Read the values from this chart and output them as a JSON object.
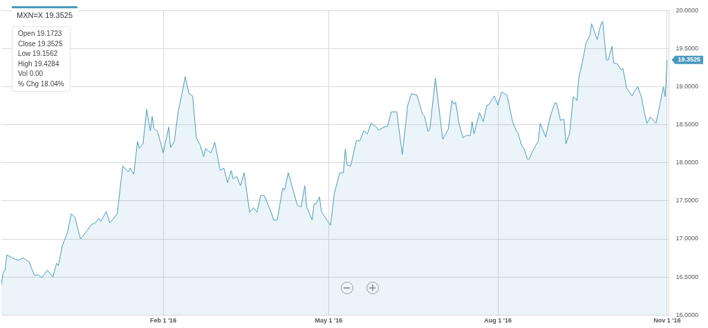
{
  "chart_data": {
    "type": "area",
    "grid": true,
    "marker": "none",
    "line_style": "solid",
    "x": [
      "2015-11-05",
      "2015-11-06",
      "2015-11-07",
      "2015-11-08",
      "2015-11-11",
      "2015-11-14",
      "2015-11-15",
      "2015-11-17",
      "2015-11-20",
      "2015-11-23",
      "2015-11-25",
      "2015-11-27",
      "2015-11-30",
      "2015-12-03",
      "2015-12-05",
      "2015-12-06",
      "2015-12-08",
      "2015-12-11",
      "2015-12-13",
      "2015-12-15",
      "2015-12-18",
      "2015-12-21",
      "2015-12-24",
      "2015-12-26",
      "2015-12-28",
      "2015-12-29",
      "2016-01-01",
      "2016-01-03",
      "2016-01-07",
      "2016-01-10",
      "2016-01-13",
      "2016-01-14",
      "2016-01-16",
      "2016-01-18",
      "2016-01-19",
      "2016-01-21",
      "2016-01-23",
      "2016-01-25",
      "2016-01-26",
      "2016-01-27",
      "2016-01-29",
      "2016-02-01",
      "2016-02-04",
      "2016-02-05",
      "2016-02-07",
      "2016-02-09",
      "2016-02-11",
      "2016-02-13",
      "2016-02-15",
      "2016-02-17",
      "2016-02-19",
      "2016-02-21",
      "2016-02-23",
      "2016-02-24",
      "2016-02-27",
      "2016-02-29",
      "2016-03-03",
      "2016-03-05",
      "2016-03-07",
      "2016-03-09",
      "2016-03-10",
      "2016-03-12",
      "2016-03-14",
      "2016-03-16",
      "2016-03-19",
      "2016-03-21",
      "2016-03-23",
      "2016-03-25",
      "2016-03-27",
      "2016-03-31",
      "2016-04-01",
      "2016-04-03",
      "2016-04-06",
      "2016-04-07",
      "2016-04-09",
      "2016-04-14",
      "2016-04-16",
      "2016-04-18",
      "2016-04-19",
      "2016-04-22",
      "2016-04-23",
      "2016-04-24",
      "2016-04-26",
      "2016-04-27",
      "2016-04-30",
      "2016-05-02",
      "2016-05-04",
      "2016-05-07",
      "2016-05-09",
      "2016-05-10",
      "2016-05-11",
      "2016-05-13",
      "2016-05-16",
      "2016-05-18",
      "2016-05-20",
      "2016-05-22",
      "2016-05-24",
      "2016-05-27",
      "2016-05-28",
      "2016-05-31",
      "2016-06-02",
      "2016-06-04",
      "2016-06-07",
      "2016-06-10",
      "2016-06-13",
      "2016-06-15",
      "2016-06-18",
      "2016-06-21",
      "2016-06-22",
      "2016-06-24",
      "2016-06-25",
      "2016-06-28",
      "2016-07-02",
      "2016-07-05",
      "2016-07-07",
      "2016-07-08",
      "2016-07-09",
      "2016-07-11",
      "2016-07-13",
      "2016-07-15",
      "2016-07-17",
      "2016-07-18",
      "2016-07-19",
      "2016-07-22",
      "2016-07-24",
      "2016-07-26",
      "2016-07-27",
      "2016-07-30",
      "2016-08-01",
      "2016-08-03",
      "2016-08-06",
      "2016-08-09",
      "2016-08-11",
      "2016-08-12",
      "2016-08-14",
      "2016-08-15",
      "2016-08-17",
      "2016-08-18",
      "2016-08-20",
      "2016-08-23",
      "2016-08-24",
      "2016-08-27",
      "2016-08-29",
      "2016-08-30",
      "2016-09-01",
      "2016-09-02",
      "2016-09-04",
      "2016-09-06",
      "2016-09-07",
      "2016-09-09",
      "2016-09-11",
      "2016-09-13",
      "2016-09-14",
      "2016-09-16",
      "2016-09-18",
      "2016-09-20",
      "2016-09-21",
      "2016-09-24",
      "2016-09-26",
      "2016-09-27",
      "2016-09-29",
      "2016-09-30",
      "2016-10-02",
      "2016-10-03",
      "2016-10-05",
      "2016-10-07",
      "2016-10-08",
      "2016-10-10",
      "2016-10-13",
      "2016-10-14",
      "2016-10-16",
      "2016-10-18",
      "2016-10-20",
      "2016-10-21",
      "2016-10-23",
      "2016-10-26",
      "2016-10-28",
      "2016-10-30",
      "2016-10-31",
      "2016-11-01"
    ],
    "series": [
      {
        "color": "#4a98bf",
        "values": [
          16.4,
          16.56,
          16.59,
          16.79,
          16.75,
          16.72,
          16.73,
          16.75,
          16.7,
          16.52,
          16.53,
          16.49,
          16.59,
          16.5,
          16.68,
          16.65,
          16.9,
          17.09,
          17.33,
          17.28,
          17.0,
          17.09,
          17.19,
          17.21,
          17.27,
          17.23,
          17.36,
          17.21,
          17.33,
          17.96,
          17.88,
          17.93,
          17.85,
          18.28,
          18.19,
          18.25,
          18.7,
          18.42,
          18.61,
          18.45,
          18.41,
          18.13,
          18.47,
          18.2,
          18.28,
          18.65,
          18.89,
          19.13,
          18.91,
          18.88,
          18.33,
          18.24,
          18.08,
          18.19,
          18.13,
          18.27,
          17.9,
          17.93,
          17.74,
          17.9,
          17.79,
          17.82,
          17.7,
          17.87,
          17.35,
          17.41,
          17.35,
          17.57,
          17.57,
          17.33,
          17.25,
          17.25,
          17.67,
          17.64,
          17.87,
          17.44,
          17.42,
          17.7,
          17.42,
          17.25,
          17.46,
          17.46,
          17.55,
          17.36,
          17.25,
          17.18,
          17.59,
          17.87,
          17.87,
          18.18,
          17.97,
          17.96,
          18.29,
          18.29,
          18.42,
          18.38,
          18.52,
          18.47,
          18.43,
          18.47,
          18.48,
          18.67,
          18.67,
          18.11,
          18.76,
          18.91,
          18.89,
          18.64,
          18.62,
          18.41,
          18.44,
          19.11,
          18.31,
          18.44,
          18.82,
          18.77,
          18.8,
          18.5,
          18.33,
          18.36,
          18.36,
          18.54,
          18.38,
          18.66,
          18.54,
          18.76,
          18.76,
          18.88,
          18.76,
          18.93,
          18.89,
          18.54,
          18.42,
          18.39,
          18.22,
          18.2,
          18.05,
          18.05,
          18.16,
          18.29,
          18.52,
          18.34,
          18.56,
          18.65,
          18.79,
          18.78,
          18.56,
          18.57,
          18.25,
          18.39,
          18.87,
          18.82,
          19.12,
          19.33,
          19.58,
          19.67,
          19.83,
          19.62,
          19.82,
          19.86,
          19.35,
          19.35,
          19.53,
          19.31,
          19.3,
          19.22,
          19.24,
          18.98,
          18.88,
          18.93,
          19.0,
          18.87,
          18.62,
          18.52,
          18.6,
          18.52,
          18.75,
          19.0,
          18.87,
          19.3525
        ]
      }
    ],
    "xlim": [
      "2015-11-05",
      "2016-11-02"
    ],
    "xticks": [
      {
        "value": "2016-02-01",
        "label": "Feb 1 '16"
      },
      {
        "value": "2016-05-01",
        "label": "May 1 '16"
      },
      {
        "value": "2016-08-01",
        "label": "Aug 1 '16"
      },
      {
        "value": "2016-11-01",
        "label": "Nov 1 '16"
      }
    ],
    "ylim": [
      16,
      20
    ],
    "yticks": [
      {
        "value": 16,
        "label": "16.0000"
      },
      {
        "value": 16.5,
        "label": "16.5000"
      },
      {
        "value": 17,
        "label": "17.0000"
      },
      {
        "value": 17.5,
        "label": "17.5000"
      },
      {
        "value": 18,
        "label": "18.0000"
      },
      {
        "value": 18.5,
        "label": "18.5000"
      },
      {
        "value": 19,
        "label": "19.0000"
      },
      {
        "value": 19.5,
        "label": "19.5000"
      },
      {
        "value": 20,
        "label": "20.0000"
      }
    ],
    "annotations": [
      "MXN=X 19.3525",
      "Open 19.1723",
      "Close 19.3525",
      "Low 19.1562",
      "High 19.4284",
      "Vol 0.00",
      "% Chg 18.04%",
      {
        "text": "19.3525",
        "x": "2016-11-01",
        "y": 19.3525
      }
    ]
  }
}
